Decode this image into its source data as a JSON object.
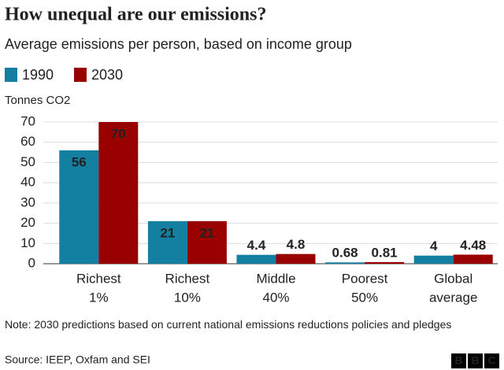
{
  "chart_data": {
    "type": "bar",
    "title": "How unequal are our emissions?",
    "subtitle": "Average emissions per person, based on income group",
    "y_label": "Tonnes CO2",
    "categories": [
      [
        "Richest",
        "1%"
      ],
      [
        "Richest",
        "10%"
      ],
      [
        "Middle",
        "40%"
      ],
      [
        "Poorest",
        "50%"
      ],
      [
        "Global",
        "average"
      ]
    ],
    "series": [
      {
        "name": "1990",
        "color": "#1380a1",
        "values": [
          56,
          21,
          4.4,
          0.68,
          4
        ]
      },
      {
        "name": "2030",
        "color": "#990000",
        "values": [
          70,
          21,
          4.8,
          0.81,
          4.48
        ]
      }
    ],
    "ylim": [
      0,
      70
    ],
    "yticks": [
      0,
      10,
      20,
      30,
      40,
      50,
      60,
      70
    ],
    "grid": true,
    "legend": "top-left",
    "note": "Note: 2030 predictions based on current national emissions reductions policies and pledges",
    "source": "Source: IEEP, Oxfam and SEI",
    "logo": [
      "B",
      "B",
      "C"
    ]
  }
}
